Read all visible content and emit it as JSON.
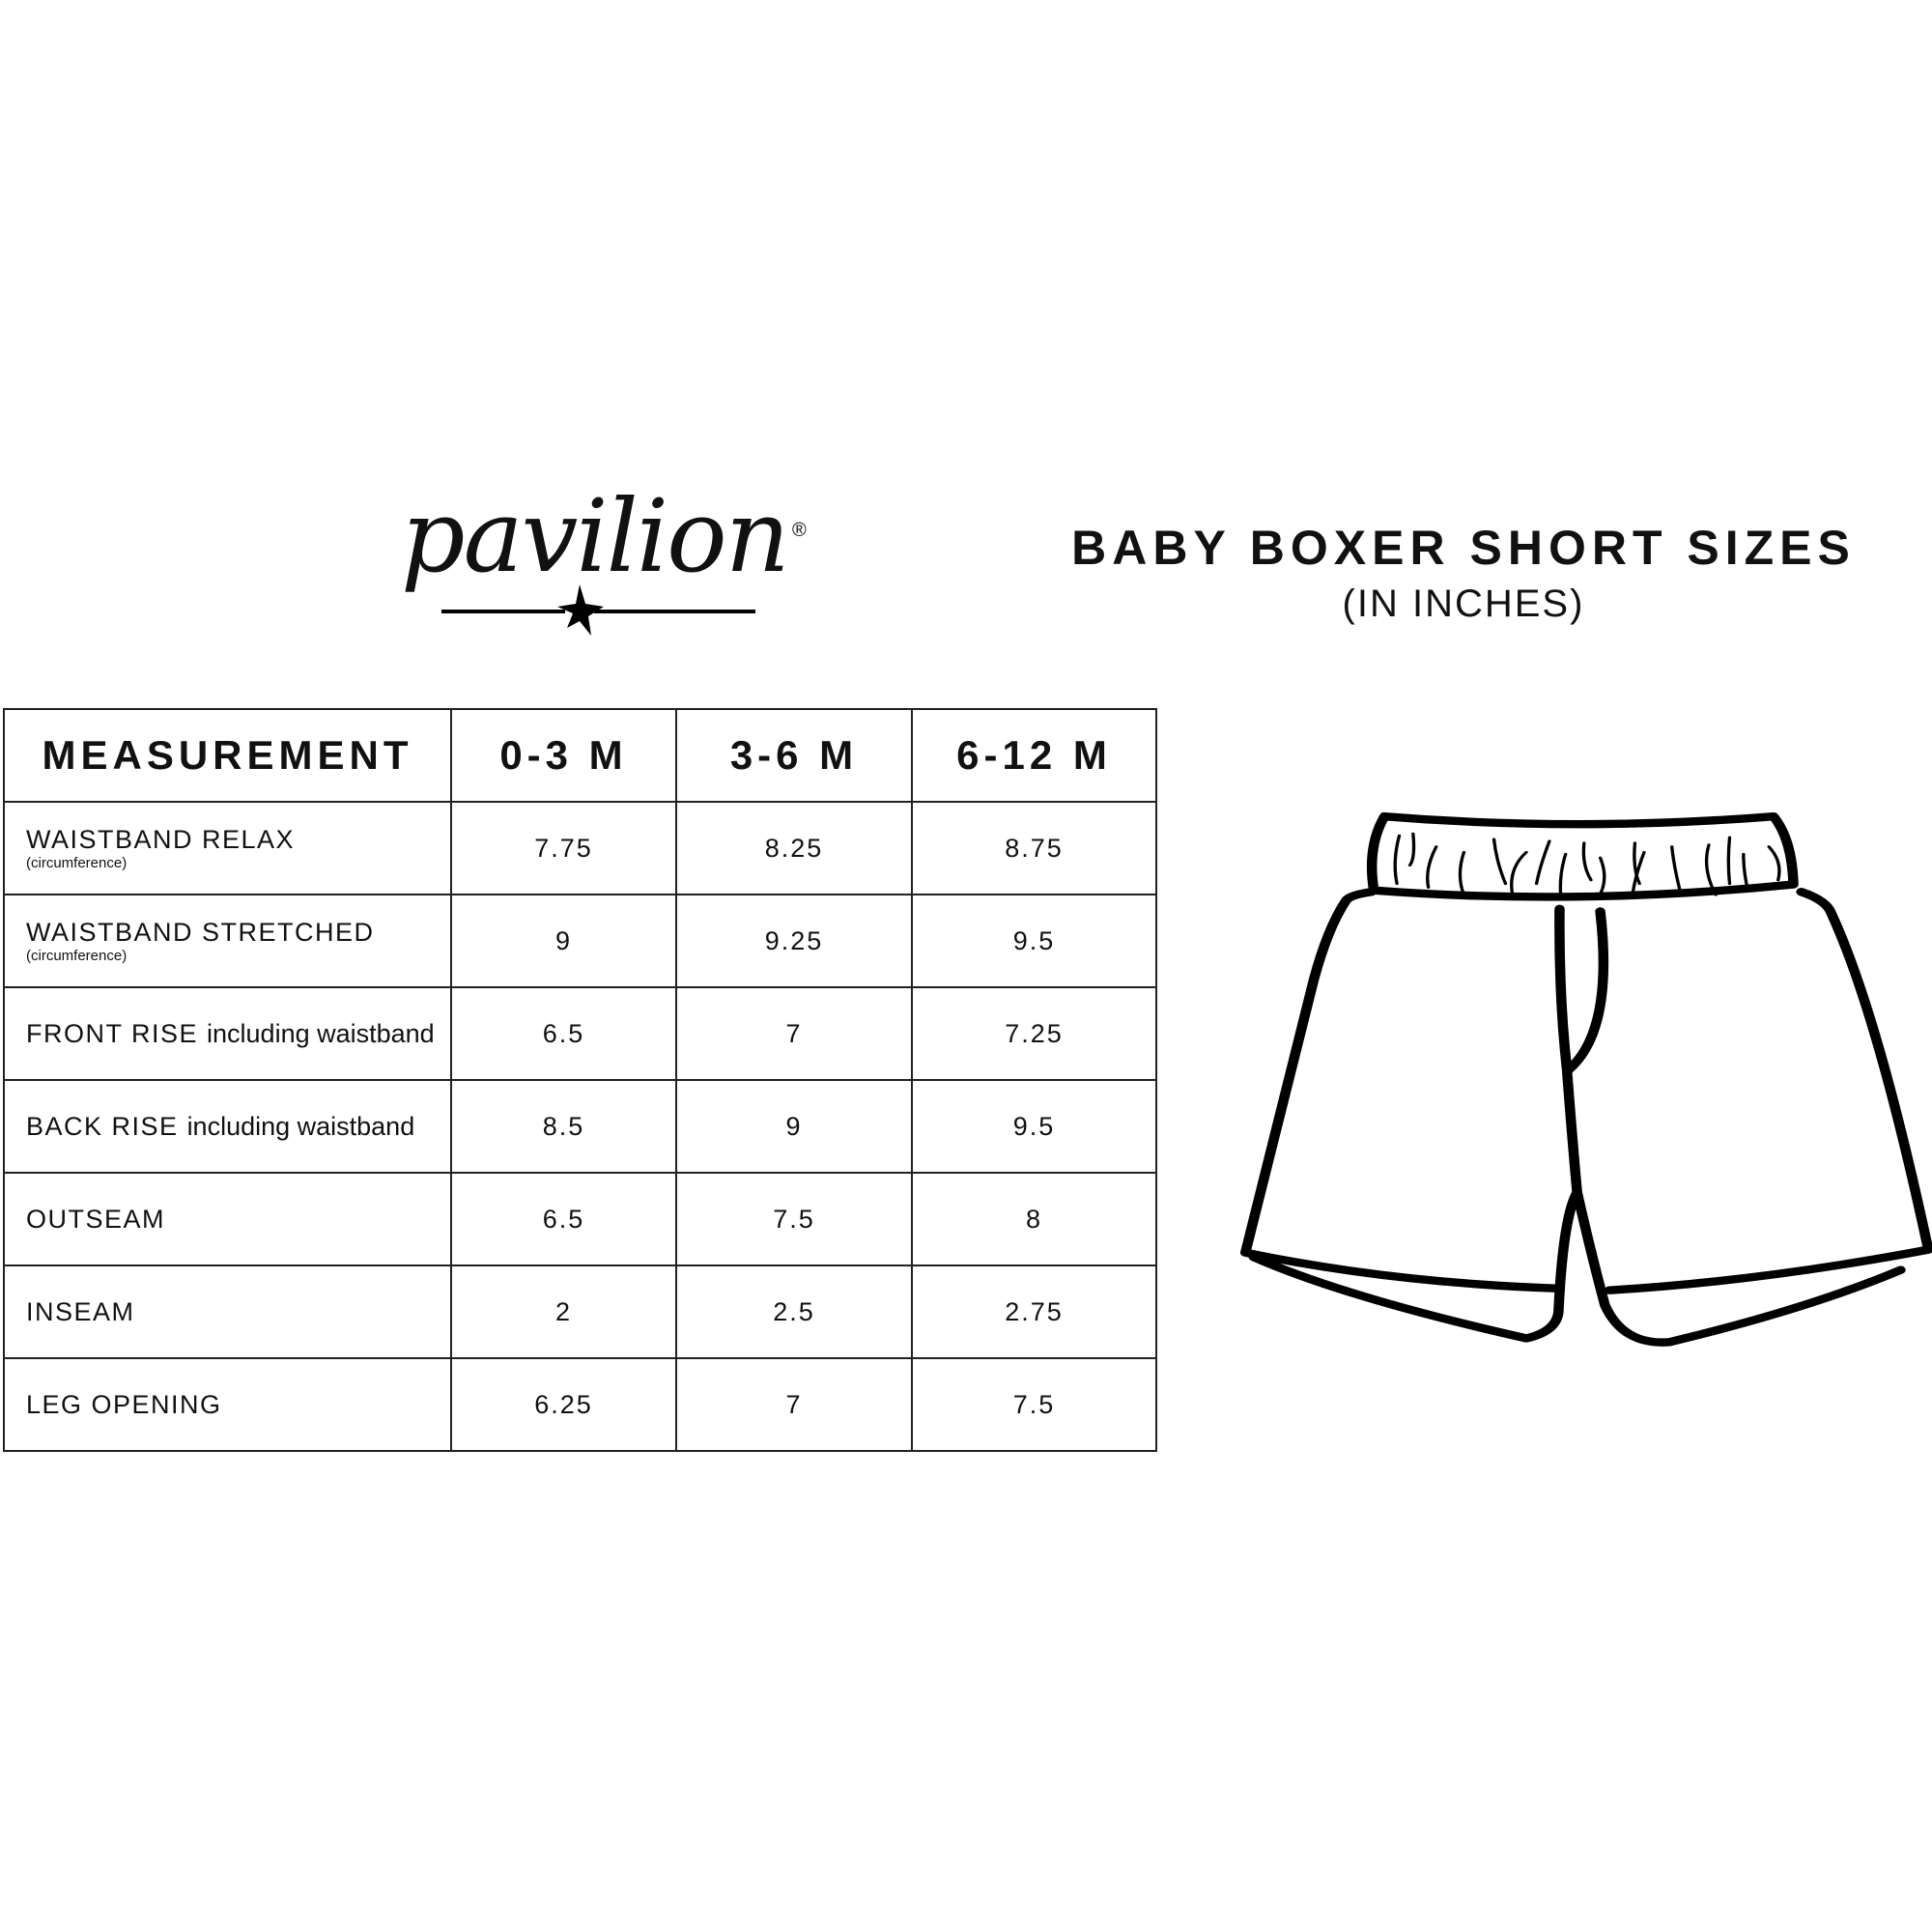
{
  "brand": {
    "logo_text": "pavilion",
    "registered_mark": "®"
  },
  "header": {
    "title": "BABY BOXER SHORT SIZES",
    "subtitle": "(IN INCHES)"
  },
  "table": {
    "columns": [
      "MEASUREMENT",
      "0-3 M",
      "3-6 M",
      "6-12 M"
    ],
    "rows": [
      {
        "label": "WAISTBAND RELAX",
        "label_suffix": "",
        "note": "(circumference)",
        "values": [
          "7.75",
          "8.25",
          "8.75"
        ]
      },
      {
        "label": "WAISTBAND STRETCHED",
        "label_suffix": "",
        "note": "(circumference)",
        "values": [
          "9",
          "9.25",
          "9.5"
        ]
      },
      {
        "label": "FRONT RISE",
        "label_suffix": "including waistband",
        "note": "",
        "values": [
          "6.5",
          "7",
          "7.25"
        ]
      },
      {
        "label": "BACK RISE",
        "label_suffix": "including waistband",
        "note": "",
        "values": [
          "8.5",
          "9",
          "9.5"
        ]
      },
      {
        "label": "OUTSEAM",
        "label_suffix": "",
        "note": "",
        "values": [
          "6.5",
          "7.5",
          "8"
        ]
      },
      {
        "label": "INSEAM",
        "label_suffix": "",
        "note": "",
        "values": [
          "2",
          "2.5",
          "2.75"
        ]
      },
      {
        "label": "LEG OPENING",
        "label_suffix": "",
        "note": "",
        "values": [
          "6.25",
          "7",
          "7.5"
        ]
      }
    ]
  },
  "illustration": {
    "icon": "boxer-shorts-icon",
    "line_color": "#000000"
  }
}
